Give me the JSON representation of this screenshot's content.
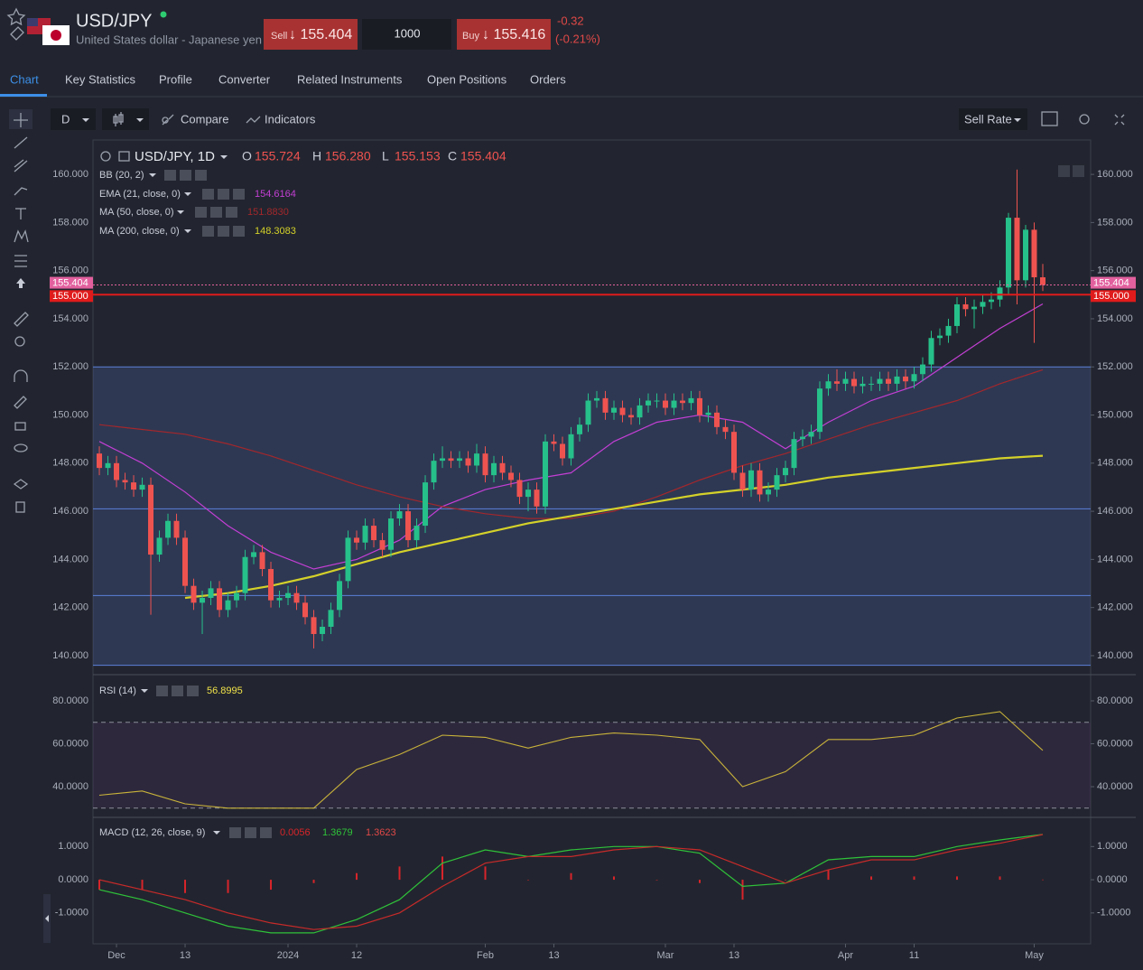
{
  "header": {
    "symbol": "USD/JPY",
    "description": "United States dollar - Japanese yen",
    "sell_label": "Sell",
    "sell_price": "↓ 155.404",
    "quantity": "1000",
    "buy_label": "Buy",
    "buy_price": "↓ 155.416",
    "change": "-0.32",
    "change_pct": "(-0.21%)"
  },
  "tabs": [
    "Chart",
    "Key Statistics",
    "Profile",
    "Converter",
    "Related Instruments",
    "Open Positions",
    "Orders"
  ],
  "toolbar": {
    "interval": "D",
    "compare": "Compare",
    "indicators": "Indicators",
    "rate": "Sell Rate"
  },
  "chart_data": [
    {
      "type": "candlestick",
      "symbol_label": "USD/JPY, 1D",
      "ohlc_legend": [
        {
          "label": "O",
          "value": "155.724"
        },
        {
          "label": "H",
          "value": "156.280"
        },
        {
          "label": "L",
          "value": "155.153"
        },
        {
          "label": "C",
          "value": "155.404"
        }
      ],
      "up_color": "#26c08a",
      "down_color": "#ef5350",
      "open": [
        148.4,
        147.8,
        148.0,
        147.3,
        147.2,
        146.9,
        147.1,
        144.2,
        144.9,
        145.6,
        144.9,
        142.9,
        142.2,
        142.4,
        142.8,
        141.9,
        142.3,
        142.6,
        144.1,
        144.3,
        143.6,
        142.3,
        142.4,
        142.6,
        142.2,
        141.6,
        140.9,
        141.2,
        141.9,
        143.1,
        144.9,
        144.7,
        145.4,
        144.8,
        144.4,
        145.7,
        146.0,
        144.8,
        145.4,
        147.2,
        148.1,
        148.2,
        148.1,
        148.2,
        147.9,
        148.4,
        147.5,
        148.0,
        147.6,
        147.3,
        146.6,
        146.9,
        146.2,
        148.9,
        148.8,
        148.2,
        149.2,
        149.6,
        150.6,
        150.7,
        150.1,
        150.3,
        150.0,
        149.9,
        150.4,
        150.6,
        150.6,
        150.3,
        150.6,
        150.5,
        150.7,
        150.0,
        150.1,
        149.5,
        149.3,
        147.6,
        146.9,
        147.7,
        146.7,
        146.9,
        147.5,
        147.8,
        149.0,
        149.1,
        149.3,
        151.1,
        151.4,
        151.3,
        151.5,
        151.2,
        151.3,
        151.3,
        151.5,
        151.3,
        151.6,
        151.4,
        151.7,
        152.1,
        153.2,
        153.3,
        153.7,
        154.6,
        154.4,
        154.5,
        154.7,
        154.8,
        155.3,
        158.2,
        155.6,
        157.7,
        155.724
      ],
      "high": [
        148.7,
        148.3,
        148.3,
        147.6,
        147.5,
        147.4,
        147.4,
        145.2,
        145.9,
        145.9,
        145.2,
        143.2,
        142.7,
        143.1,
        143.1,
        142.6,
        142.9,
        144.4,
        144.6,
        144.6,
        143.9,
        142.7,
        142.9,
        142.9,
        142.5,
        141.9,
        141.5,
        142.2,
        143.4,
        145.2,
        145.2,
        145.7,
        145.7,
        145.1,
        146.0,
        146.3,
        146.3,
        145.7,
        147.5,
        148.4,
        148.7,
        148.5,
        148.5,
        148.5,
        148.8,
        148.7,
        148.3,
        148.3,
        147.9,
        147.6,
        147.2,
        147.2,
        149.2,
        149.2,
        149.1,
        149.5,
        149.9,
        150.9,
        151.0,
        151.0,
        150.6,
        150.6,
        150.3,
        150.7,
        150.9,
        150.9,
        150.9,
        150.9,
        150.9,
        151.0,
        151.0,
        150.4,
        150.4,
        149.8,
        149.6,
        147.9,
        148.0,
        148.0,
        147.2,
        147.8,
        148.1,
        149.3,
        149.4,
        149.6,
        151.4,
        151.7,
        151.9,
        151.8,
        151.8,
        151.6,
        151.6,
        151.8,
        151.8,
        151.9,
        151.9,
        152.0,
        152.4,
        153.5,
        153.6,
        154.0,
        154.9,
        154.9,
        154.8,
        155.0,
        155.1,
        155.6,
        158.4,
        160.2,
        157.9,
        158.0,
        156.28
      ],
      "low": [
        147.5,
        147.5,
        147.0,
        146.9,
        146.6,
        146.6,
        141.7,
        143.9,
        144.6,
        144.6,
        142.6,
        141.9,
        140.9,
        142.1,
        141.6,
        141.6,
        142.0,
        142.3,
        143.8,
        143.3,
        142.0,
        142.0,
        142.1,
        141.9,
        141.3,
        140.3,
        140.6,
        140.9,
        141.6,
        142.8,
        144.4,
        144.4,
        144.5,
        144.1,
        144.1,
        145.4,
        144.5,
        144.5,
        145.1,
        146.9,
        147.8,
        147.8,
        147.8,
        147.6,
        147.6,
        147.2,
        147.2,
        147.3,
        147.0,
        146.3,
        146.0,
        145.9,
        145.9,
        148.5,
        147.9,
        147.9,
        148.9,
        149.3,
        150.3,
        149.8,
        149.8,
        149.7,
        149.6,
        149.6,
        150.1,
        150.3,
        150.0,
        150.0,
        150.2,
        150.2,
        149.7,
        149.7,
        149.2,
        149.0,
        147.3,
        146.6,
        146.6,
        146.4,
        146.4,
        146.6,
        147.2,
        147.5,
        148.7,
        148.8,
        149.0,
        150.8,
        151.0,
        151.0,
        150.9,
        150.9,
        151.0,
        151.0,
        151.0,
        151.0,
        151.1,
        151.1,
        151.4,
        151.8,
        152.9,
        153.0,
        153.4,
        154.1,
        153.6,
        154.2,
        154.4,
        154.5,
        155.0,
        154.6,
        155.3,
        153.0,
        155.153
      ],
      "close": [
        147.8,
        148.0,
        147.3,
        147.2,
        146.9,
        147.1,
        144.2,
        144.9,
        145.6,
        144.9,
        142.9,
        142.2,
        142.4,
        142.8,
        141.9,
        142.3,
        142.6,
        144.1,
        144.3,
        143.6,
        142.3,
        142.4,
        142.6,
        142.2,
        141.6,
        140.9,
        141.2,
        141.9,
        143.1,
        144.9,
        144.7,
        145.4,
        144.8,
        144.4,
        145.7,
        146.0,
        144.8,
        145.4,
        147.2,
        148.1,
        148.2,
        148.1,
        148.2,
        147.9,
        148.4,
        147.5,
        148.0,
        147.6,
        147.3,
        146.6,
        146.9,
        146.2,
        148.9,
        148.8,
        148.2,
        149.2,
        149.6,
        150.6,
        150.7,
        150.1,
        150.3,
        150.0,
        149.9,
        150.4,
        150.6,
        150.6,
        150.3,
        150.6,
        150.5,
        150.7,
        150.0,
        150.1,
        149.5,
        149.3,
        147.6,
        146.9,
        147.7,
        146.7,
        146.9,
        147.5,
        147.8,
        149.0,
        149.1,
        149.3,
        151.1,
        151.4,
        151.3,
        151.5,
        151.2,
        151.3,
        151.3,
        151.5,
        151.3,
        151.6,
        151.4,
        151.7,
        152.1,
        153.2,
        153.3,
        153.7,
        154.6,
        154.4,
        154.5,
        154.7,
        154.8,
        155.3,
        158.2,
        155.6,
        157.7,
        155.724,
        155.404
      ],
      "xlim": [
        -0.74,
        115.58
      ],
      "xticks": [
        {
          "value": 2,
          "label": "Dec"
        },
        {
          "value": 10,
          "label": "13"
        },
        {
          "value": 22,
          "label": "2024"
        },
        {
          "value": 30,
          "label": "12"
        },
        {
          "value": 45,
          "label": "Feb"
        },
        {
          "value": 53,
          "label": "13"
        },
        {
          "value": 66,
          "label": "Mar"
        },
        {
          "value": 74,
          "label": "13"
        },
        {
          "value": 87,
          "label": "Apr"
        },
        {
          "value": 95,
          "label": "11"
        },
        {
          "value": 109,
          "label": "May"
        }
      ],
      "ylim": [
        139.21,
        161.43
      ],
      "yticks": [
        {
          "value": 140,
          "label": "140.000"
        },
        {
          "value": 142,
          "label": "142.000"
        },
        {
          "value": 144,
          "label": "144.000"
        },
        {
          "value": 146,
          "label": "146.000"
        },
        {
          "value": 148,
          "label": "148.000"
        },
        {
          "value": 150,
          "label": "150.000"
        },
        {
          "value": 152,
          "label": "152.000"
        },
        {
          "value": 154,
          "label": "154.000"
        },
        {
          "value": 156,
          "label": "156.000"
        },
        {
          "value": 158,
          "label": "158.000"
        },
        {
          "value": 160,
          "label": "160.000"
        }
      ],
      "price_lines": [
        {
          "value": 155.404,
          "label": "155.404",
          "color": "#e2609e",
          "dashed": true
        },
        {
          "value": 155,
          "label": "155.000",
          "color": "#e01b1b",
          "dashed": false
        }
      ],
      "bands": {
        "name": "BB (20, 2)",
        "color": "#5b80d8",
        "levels": [
          152.0,
          146.1,
          142.5,
          139.6
        ]
      },
      "line_x": [
        0,
        5,
        10,
        15,
        20,
        25,
        30,
        35,
        40,
        45,
        50,
        55,
        60,
        65,
        70,
        75,
        80,
        85,
        90,
        95,
        100,
        105,
        110
      ],
      "series": [
        {
          "name": "EMA (21, close, 0)",
          "legend_value": "154.6164",
          "color": "#c33fd4",
          "width": 1.2,
          "values": [
            148.9,
            148.0,
            146.8,
            145.4,
            144.3,
            143.6,
            144.0,
            144.8,
            146.2,
            146.9,
            147.3,
            147.6,
            148.9,
            149.7,
            150.0,
            149.7,
            148.6,
            149.7,
            150.6,
            151.2,
            152.4,
            153.6,
            154.6164
          ]
        },
        {
          "name": "MA (50, close, 0)",
          "legend_value": "151.8830",
          "color": "#a3272c",
          "width": 1.2,
          "values": [
            149.6,
            149.4,
            149.2,
            148.8,
            148.3,
            147.7,
            147.1,
            146.6,
            146.2,
            145.9,
            145.7,
            145.7,
            146.0,
            146.6,
            147.3,
            147.9,
            148.4,
            149.0,
            149.6,
            150.1,
            150.6,
            151.3,
            151.883
          ]
        },
        {
          "name": "MA (200, close, 0)",
          "legend_value": "148.3083",
          "color": "#d4d12a",
          "width": 2.2,
          "values": [
            null,
            null,
            142.4,
            142.6,
            142.9,
            143.3,
            143.8,
            144.3,
            144.7,
            145.1,
            145.5,
            145.8,
            146.1,
            146.4,
            146.7,
            146.9,
            147.1,
            147.4,
            147.6,
            147.8,
            148.0,
            148.2,
            148.3083
          ]
        }
      ]
    },
    {
      "type": "line",
      "name": "RSI (14)",
      "line_x": [
        0,
        5,
        10,
        15,
        20,
        25,
        30,
        35,
        40,
        45,
        50,
        55,
        60,
        65,
        70,
        75,
        80,
        85,
        90,
        95,
        100,
        105,
        110
      ],
      "ylim": [
        25.7,
        92.2
      ],
      "yticks": [
        {
          "value": 40,
          "label": "40.0000"
        },
        {
          "value": 60,
          "label": "60.0000"
        },
        {
          "value": 80,
          "label": "80.0000"
        }
      ],
      "levels": [
        70,
        30
      ],
      "series": [
        {
          "legend_value": "56.8995",
          "color": "#c9b43a",
          "width": 1.1,
          "values": [
            36,
            38,
            32,
            30,
            30,
            30,
            48,
            55,
            64,
            63,
            58,
            63,
            65,
            64,
            62,
            40,
            47,
            62,
            62,
            64,
            72,
            75,
            56.8995
          ]
        }
      ]
    },
    {
      "type": "macd",
      "name": "MACD (12, 26, close, 9)",
      "line_x": [
        0,
        5,
        10,
        15,
        20,
        25,
        30,
        35,
        40,
        45,
        50,
        55,
        60,
        65,
        70,
        75,
        80,
        85,
        90,
        95,
        100,
        105,
        110
      ],
      "ylim": [
        -1.93,
        1.88
      ],
      "yticks": [
        {
          "value": -1,
          "label": "-1.0000"
        },
        {
          "value": 0,
          "label": "0.0000"
        },
        {
          "value": 1,
          "label": "1.0000"
        }
      ],
      "histogram": {
        "legend_value": "0.0056",
        "color": "#d8242a",
        "values": [
          -0.3,
          -0.3,
          -0.4,
          -0.4,
          -0.3,
          -0.1,
          0.2,
          0.4,
          0.7,
          0.4,
          0,
          0.2,
          0.1,
          0,
          -0.1,
          -0.6,
          0,
          0.3,
          0.1,
          0.1,
          0.1,
          0.1,
          0.0056
        ]
      },
      "series": [
        {
          "legend_value": "1.3679",
          "color": "#2fc23a",
          "width": 1.2,
          "values": [
            -0.3,
            -0.6,
            -1.0,
            -1.4,
            -1.6,
            -1.6,
            -1.2,
            -0.6,
            0.5,
            0.9,
            0.7,
            0.9,
            1.0,
            1.0,
            0.8,
            -0.2,
            -0.1,
            0.6,
            0.7,
            0.7,
            1.0,
            1.2,
            1.3679
          ]
        },
        {
          "legend_value": "1.3623",
          "color": "#c82a2a",
          "width": 1.2,
          "values": [
            0,
            -0.3,
            -0.6,
            -1.0,
            -1.3,
            -1.5,
            -1.4,
            -1.0,
            -0.2,
            0.5,
            0.7,
            0.7,
            0.9,
            1.0,
            0.9,
            0.4,
            -0.1,
            0.3,
            0.6,
            0.6,
            0.9,
            1.1,
            1.3623
          ]
        }
      ]
    }
  ]
}
